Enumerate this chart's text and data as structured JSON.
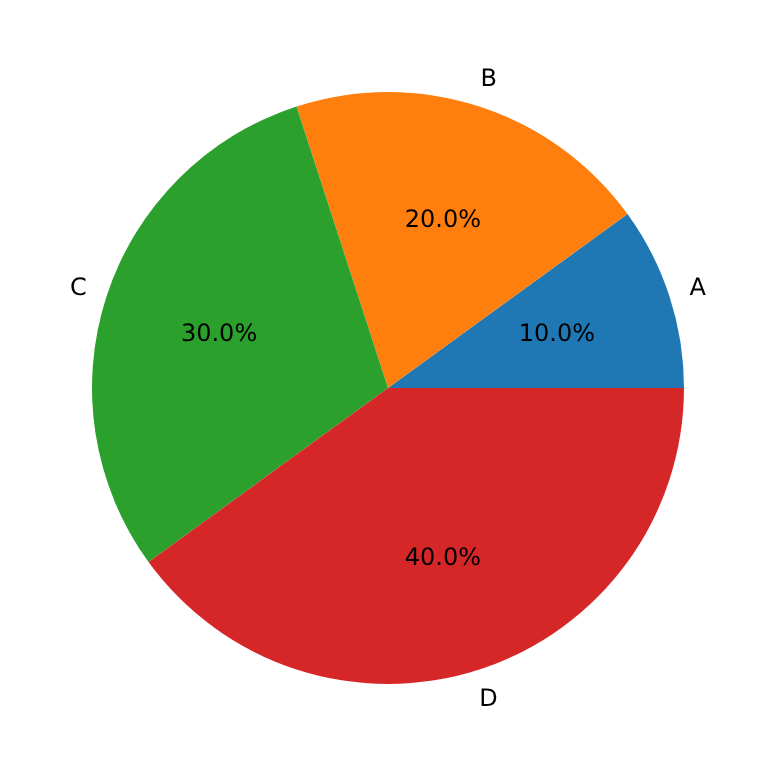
{
  "chart_data": {
    "type": "pie",
    "categories": [
      "A",
      "B",
      "C",
      "D"
    ],
    "values": [
      10,
      20,
      30,
      40
    ],
    "colors": [
      "#1f77b4",
      "#ff7f0e",
      "#2ca02c",
      "#d62728"
    ],
    "value_labels": [
      "10.0%",
      "20.0%",
      "30.0%",
      "40.0%"
    ]
  }
}
